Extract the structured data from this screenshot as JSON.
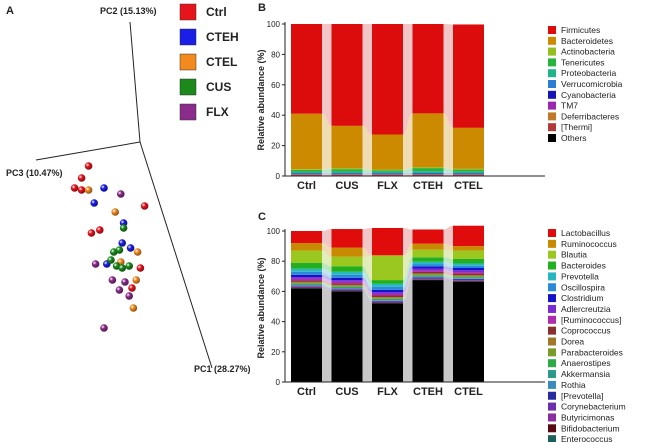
{
  "panels": {
    "A": "A",
    "B": "B",
    "C": "C"
  },
  "colors": {
    "Ctrl": "#e8141c",
    "CTEH": "#1a1ee6",
    "CTEL": "#f28a1e",
    "CUS": "#1b8a1b",
    "FLX": "#8b2c8c",
    "axis": "#222222",
    "pale_red": "#f2c6c6",
    "pale_gray": "#c8c8c8"
  },
  "chart_data": [
    {
      "type": "scatter",
      "title": "",
      "axes": [
        {
          "label": "PC1 (28.27%)",
          "name": "PC1",
          "pct": 28.27
        },
        {
          "label": "PC2 (15.13%)",
          "name": "PC2",
          "pct": 15.13
        },
        {
          "label": "PC3 (10.47%)",
          "name": "PC3",
          "pct": 10.47
        }
      ],
      "legend": [
        {
          "label": "Ctrl",
          "color": "#e8141c"
        },
        {
          "label": "CTEH",
          "color": "#1a1ee6"
        },
        {
          "label": "CTEL",
          "color": "#f28a1e"
        },
        {
          "label": "CUS",
          "color": "#1b8a1b"
        },
        {
          "label": "FLX",
          "color": "#8b2c8c"
        }
      ],
      "points": [
        {
          "group": "Ctrl",
          "pc_x": -0.52,
          "pc_y": 0.62
        },
        {
          "group": "Ctrl",
          "pc_x": -0.62,
          "pc_y": 0.5
        },
        {
          "group": "Ctrl",
          "pc_x": -0.72,
          "pc_y": 0.4
        },
        {
          "group": "Ctrl",
          "pc_x": -0.62,
          "pc_y": 0.38
        },
        {
          "group": "Ctrl",
          "pc_x": 0.28,
          "pc_y": 0.22
        },
        {
          "group": "Ctrl",
          "pc_x": -0.36,
          "pc_y": -0.02
        },
        {
          "group": "Ctrl",
          "pc_x": -0.48,
          "pc_y": -0.05
        },
        {
          "group": "Ctrl",
          "pc_x": 0.22,
          "pc_y": -0.4
        },
        {
          "group": "Ctrl",
          "pc_x": 0.1,
          "pc_y": -0.6
        },
        {
          "group": "CTEH",
          "pc_x": -0.3,
          "pc_y": 0.4
        },
        {
          "group": "CTEH",
          "pc_x": -0.44,
          "pc_y": 0.25
        },
        {
          "group": "CTEH",
          "pc_x": -0.02,
          "pc_y": 0.05
        },
        {
          "group": "CTEH",
          "pc_x": -0.04,
          "pc_y": -0.15
        },
        {
          "group": "CTEH",
          "pc_x": 0.08,
          "pc_y": -0.2
        },
        {
          "group": "CTEH",
          "pc_x": -0.26,
          "pc_y": -0.36
        },
        {
          "group": "CTEL",
          "pc_x": -0.52,
          "pc_y": 0.38
        },
        {
          "group": "CTEL",
          "pc_x": -0.14,
          "pc_y": 0.16
        },
        {
          "group": "CTEL",
          "pc_x": 0.18,
          "pc_y": -0.24
        },
        {
          "group": "CTEL",
          "pc_x": -0.06,
          "pc_y": -0.34
        },
        {
          "group": "CTEL",
          "pc_x": 0.16,
          "pc_y": -0.52
        },
        {
          "group": "CTEL",
          "pc_x": 0.12,
          "pc_y": -0.8
        },
        {
          "group": "CUS",
          "pc_x": -0.02,
          "pc_y": 0.0
        },
        {
          "group": "CUS",
          "pc_x": -0.16,
          "pc_y": -0.24
        },
        {
          "group": "CUS",
          "pc_x": -0.08,
          "pc_y": -0.22
        },
        {
          "group": "CUS",
          "pc_x": -0.2,
          "pc_y": -0.32
        },
        {
          "group": "CUS",
          "pc_x": -0.12,
          "pc_y": -0.38
        },
        {
          "group": "CUS",
          "pc_x": -0.04,
          "pc_y": -0.4
        },
        {
          "group": "CUS",
          "pc_x": 0.06,
          "pc_y": -0.38
        },
        {
          "group": "FLX",
          "pc_x": -0.06,
          "pc_y": 0.34
        },
        {
          "group": "FLX",
          "pc_x": -0.42,
          "pc_y": -0.36
        },
        {
          "group": "FLX",
          "pc_x": -0.18,
          "pc_y": -0.52
        },
        {
          "group": "FLX",
          "pc_x": 0.0,
          "pc_y": -0.54
        },
        {
          "group": "FLX",
          "pc_x": -0.08,
          "pc_y": -0.62
        },
        {
          "group": "FLX",
          "pc_x": 0.06,
          "pc_y": -0.68
        },
        {
          "group": "FLX",
          "pc_x": -0.3,
          "pc_y": -1.0
        }
      ]
    },
    {
      "type": "bar",
      "stacked": true,
      "ylabel": "Relative abundance (%)",
      "ylim": [
        0,
        100
      ],
      "yticks": [
        0,
        20,
        40,
        60,
        80,
        100
      ],
      "categories": [
        "Ctrl",
        "CUS",
        "FLX",
        "CTEH",
        "CTEL"
      ],
      "series": [
        {
          "name": "Others",
          "color": "#000000",
          "values": [
            0.5,
            0.5,
            0.5,
            0.5,
            0.5
          ]
        },
        {
          "name": "[Thermi]",
          "color": "#b03a3a",
          "values": [
            0.3,
            0.3,
            0.3,
            0.3,
            0.3
          ]
        },
        {
          "name": "Deferribacteres",
          "color": "#c07a2a",
          "values": [
            0.2,
            0.2,
            0.2,
            0.2,
            0.2
          ]
        },
        {
          "name": "TM7",
          "color": "#9b27b0",
          "values": [
            0.3,
            0.3,
            0.3,
            0.3,
            0.3
          ]
        },
        {
          "name": "Cyanobacteria",
          "color": "#1515b8",
          "values": [
            0.3,
            0.3,
            0.3,
            0.3,
            0.3
          ]
        },
        {
          "name": "Verrucomicrobia",
          "color": "#2a7fd4",
          "values": [
            0.3,
            0.3,
            0.3,
            0.4,
            0.3
          ]
        },
        {
          "name": "Proteobacteria",
          "color": "#1fb58a",
          "values": [
            0.8,
            1.0,
            0.8,
            1.2,
            0.9
          ]
        },
        {
          "name": "Tenericutes",
          "color": "#27b33c",
          "values": [
            1.3,
            1.6,
            1.1,
            2.0,
            1.4
          ]
        },
        {
          "name": "Actinobacteria",
          "color": "#93c01f",
          "values": [
            0.5,
            0.5,
            0.5,
            0.5,
            0.5
          ]
        },
        {
          "name": "Bacteroidetes",
          "color": "#cc8a00",
          "values": [
            36.5,
            28.0,
            23.0,
            35.5,
            27.0
          ]
        },
        {
          "name": "Firmicutes",
          "color": "#dd0c0c",
          "values": [
            59.0,
            67.0,
            72.7,
            58.8,
            68.0
          ]
        }
      ]
    },
    {
      "type": "bar",
      "stacked": true,
      "ylabel": "Relative abundance (%)",
      "ylim": [
        0,
        100
      ],
      "yticks": [
        0,
        20,
        40,
        60,
        80,
        100
      ],
      "categories": [
        "Ctrl",
        "CUS",
        "FLX",
        "CTEH",
        "CTEL"
      ],
      "series": [
        {
          "name": "Others",
          "color": "#000000",
          "values": [
            62.0,
            60.0,
            52.0,
            67.5,
            66.5
          ]
        },
        {
          "name": "Enterococcus",
          "color": "#1f5f5a",
          "values": [
            0.3,
            0.3,
            0.3,
            0.3,
            0.3
          ]
        },
        {
          "name": "Bifidobacterium",
          "color": "#5a0a14",
          "values": [
            0.3,
            0.3,
            0.3,
            0.3,
            0.3
          ]
        },
        {
          "name": "Butyricimonas",
          "color": "#8b2fa0",
          "values": [
            0.4,
            0.4,
            0.4,
            0.4,
            0.4
          ]
        },
        {
          "name": "Corynebacterium",
          "color": "#6b2fb0",
          "values": [
            0.4,
            0.4,
            0.4,
            0.4,
            0.4
          ]
        },
        {
          "name": "[Prevotella]",
          "color": "#2a2aa0",
          "values": [
            0.4,
            0.4,
            0.4,
            0.4,
            0.4
          ]
        },
        {
          "name": "Rothia",
          "color": "#3a8ac0",
          "values": [
            0.4,
            0.4,
            0.4,
            0.4,
            0.4
          ]
        },
        {
          "name": "Akkermansia",
          "color": "#2a9a8a",
          "values": [
            0.4,
            0.4,
            0.4,
            0.5,
            0.4
          ]
        },
        {
          "name": "Anaerostipes",
          "color": "#2faa4a",
          "values": [
            0.5,
            0.5,
            0.5,
            0.5,
            0.5
          ]
        },
        {
          "name": "Parabacteroides",
          "color": "#7a9a2a",
          "values": [
            0.6,
            0.6,
            0.6,
            0.6,
            0.6
          ]
        },
        {
          "name": "Dorea",
          "color": "#a0782a",
          "values": [
            0.6,
            0.6,
            0.6,
            0.6,
            0.6
          ]
        },
        {
          "name": "Coprococcus",
          "color": "#8a3030",
          "values": [
            1.0,
            1.0,
            1.0,
            1.0,
            1.0
          ]
        },
        {
          "name": "[Ruminococcus]",
          "color": "#b02ab0",
          "values": [
            1.0,
            1.0,
            1.0,
            1.0,
            1.0
          ]
        },
        {
          "name": "Adlercreutzia",
          "color": "#7b2ad8",
          "values": [
            1.2,
            1.2,
            1.2,
            1.2,
            1.2
          ]
        },
        {
          "name": "Clostridium",
          "color": "#1414c8",
          "values": [
            1.5,
            1.5,
            1.5,
            1.5,
            1.5
          ]
        },
        {
          "name": "Oscillospira",
          "color": "#2a8ad8",
          "values": [
            2.0,
            2.0,
            2.0,
            1.5,
            1.5
          ]
        },
        {
          "name": "Prevotella",
          "color": "#2ab8c0",
          "values": [
            2.0,
            2.0,
            2.0,
            1.5,
            1.5
          ]
        },
        {
          "name": "Bacteroides",
          "color": "#22b022",
          "values": [
            4.0,
            3.5,
            2.5,
            3.0,
            3.0
          ]
        },
        {
          "name": "Blautia",
          "color": "#9ac81e",
          "values": [
            8.0,
            6.5,
            16.0,
            5.0,
            5.5
          ]
        },
        {
          "name": "Ruminococcus",
          "color": "#c88a00",
          "values": [
            5.0,
            6.0,
            0.5,
            4.0,
            3.0
          ]
        },
        {
          "name": "Lactobacillus",
          "color": "#e00c0c",
          "values": [
            8.0,
            12.3,
            18.0,
            9.4,
            13.5
          ]
        }
      ]
    }
  ]
}
